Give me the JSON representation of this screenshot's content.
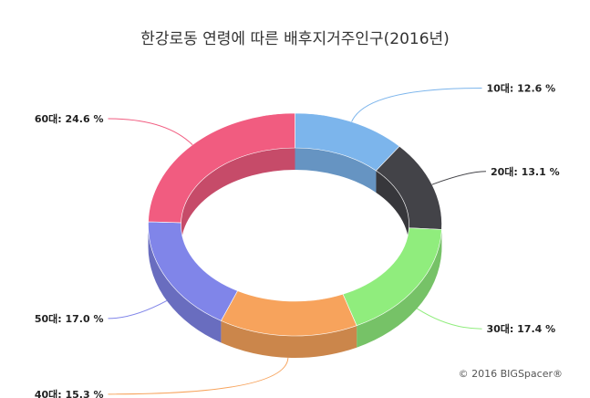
{
  "chart_data": {
    "type": "pie",
    "subtype": "3d-donut",
    "title": "한강로동 연령에 따른 배후지거주인구(2016년)",
    "categories": [
      "10대",
      "20대",
      "30대",
      "40대",
      "50대",
      "60대"
    ],
    "values": [
      12.6,
      13.1,
      17.4,
      15.3,
      17.0,
      24.6
    ],
    "labels": [
      "10대: 12.6 %",
      "20대: 13.1 %",
      "30대: 17.4 %",
      "40대: 15.3 %",
      "50대: 17.0 %",
      "60대: 24.6 %"
    ],
    "unit": "%",
    "colors": [
      "#7cb5ec",
      "#434348",
      "#90ed7d",
      "#f7a35c",
      "#8085e9",
      "#f15c80"
    ],
    "legend": "none"
  },
  "credit": "© 2016 BIGSpacer®"
}
